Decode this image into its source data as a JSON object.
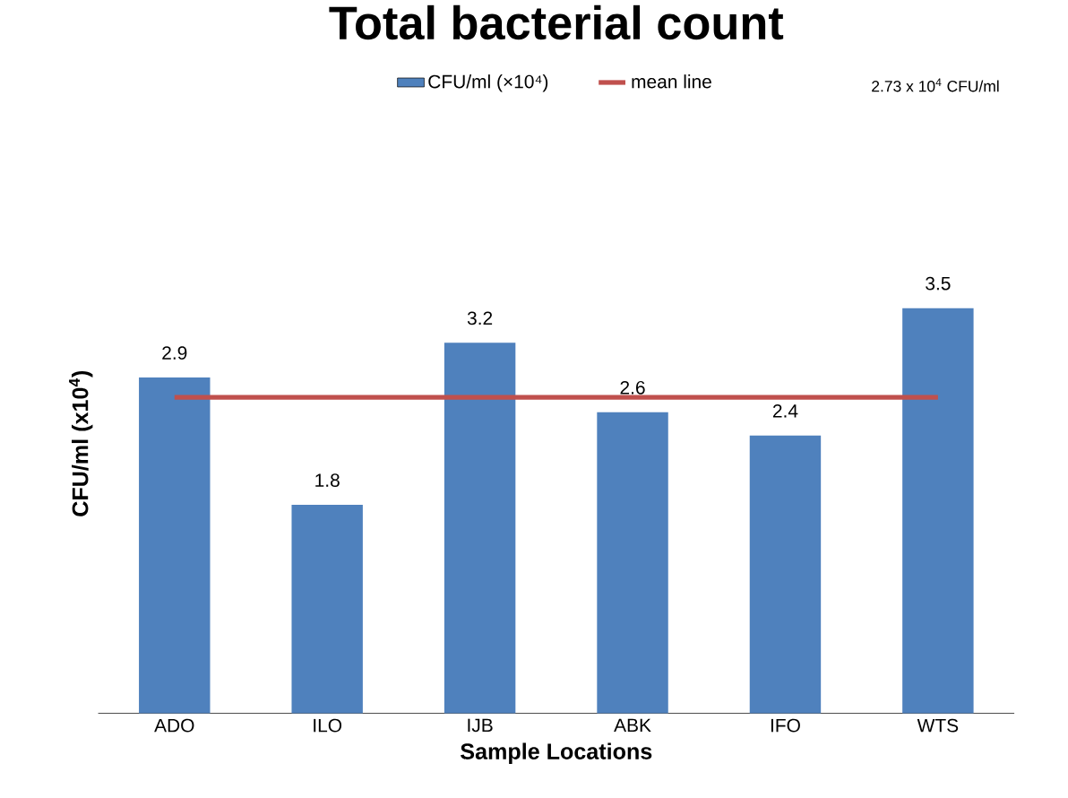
{
  "chart_data": {
    "type": "bar",
    "title": "Total bacterial count",
    "xlabel": "Sample Locations",
    "ylabel": "CFU/ml (x10$^{4}$)",
    "categories": [
      "ADO",
      "ILO",
      "IJB",
      "ABK",
      "IFO",
      "WTS"
    ],
    "series": [
      {
        "name": "CFU/ml (×10⁴)",
        "color": "#4f81bd",
        "values": [
          2.9,
          1.8,
          3.2,
          2.6,
          2.4,
          3.5
        ],
        "value_labels": [
          "2.9",
          "1.8",
          "3.2",
          "2.6",
          "2.4",
          "3.5"
        ]
      },
      {
        "name": "mean line",
        "type": "line",
        "color": "#c0504d",
        "values": [
          2.73,
          2.73,
          2.73,
          2.73,
          2.73,
          2.73
        ]
      }
    ],
    "annotations": [
      "2.73 x 10$^{4}$ CFU/ml"
    ],
    "legend": "top"
  }
}
